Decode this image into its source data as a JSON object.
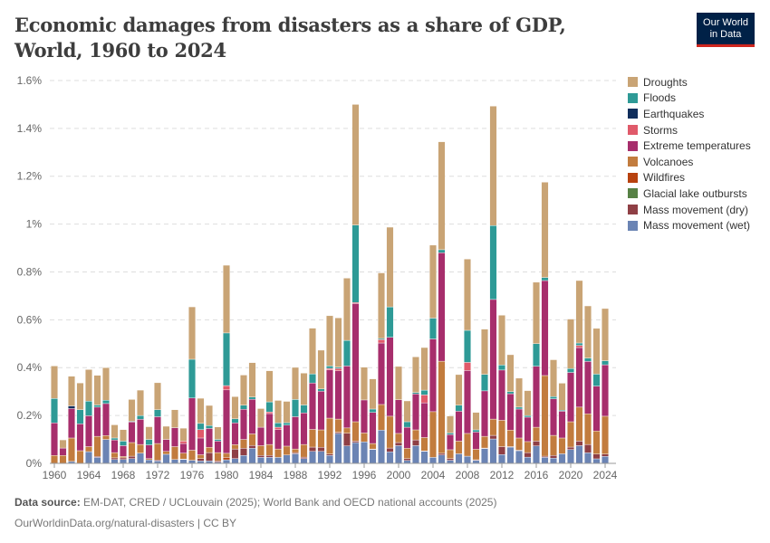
{
  "title": "Economic damages from disasters as a share of GDP, World, 1960 to 2024",
  "logo": {
    "line1": "Our World",
    "line2": "in Data"
  },
  "footer": {
    "source_label": "Data source:",
    "source": "EM-DAT, CRED / UCLouvain (2025); World Bank and OECD national accounts (2025)",
    "url": "OurWorldinData.org/natural-disasters | CC BY"
  },
  "chart_data": {
    "type": "bar",
    "stacked": true,
    "title": "Economic damages from disasters as a share of GDP, World, 1960 to 2024",
    "xlabel": "",
    "ylabel": "",
    "ylim": [
      0,
      1.6
    ],
    "grid": true,
    "legend_position": "right",
    "y_ticks": [
      "0%",
      "0.2%",
      "0.4%",
      "0.6%",
      "0.8%",
      "1%",
      "1.2%",
      "1.4%",
      "1.6%"
    ],
    "x_ticks": [
      "1960",
      "1964",
      "1968",
      "1972",
      "1976",
      "1980",
      "1984",
      "1988",
      "1992",
      "1996",
      "2000",
      "2004",
      "2008",
      "2012",
      "2016",
      "2020",
      "2024"
    ],
    "years": [
      1960,
      1961,
      1962,
      1963,
      1964,
      1965,
      1966,
      1967,
      1968,
      1969,
      1970,
      1971,
      1972,
      1973,
      1974,
      1975,
      1976,
      1977,
      1978,
      1979,
      1980,
      1981,
      1982,
      1983,
      1984,
      1985,
      1986,
      1987,
      1988,
      1989,
      1990,
      1991,
      1992,
      1993,
      1994,
      1995,
      1996,
      1997,
      1998,
      1999,
      2000,
      2001,
      2002,
      2003,
      2004,
      2005,
      2006,
      2007,
      2008,
      2009,
      2010,
      2011,
      2012,
      2013,
      2014,
      2015,
      2016,
      2017,
      2018,
      2019,
      2020,
      2021,
      2022,
      2023,
      2024
    ],
    "unit": "% of GDP",
    "series": [
      {
        "name": "Mass movement (wet)",
        "color": "#6b84b4",
        "values": [
          0,
          0,
          0.008,
          0,
          0.049,
          0.025,
          0.1,
          0.016,
          0.016,
          0.02,
          0.043,
          0.015,
          0.01,
          0.038,
          0.016,
          0.016,
          0.013,
          0.01,
          0.01,
          0.005,
          0.015,
          0.02,
          0.033,
          0.063,
          0.025,
          0.025,
          0.025,
          0.035,
          0.04,
          0.02,
          0.05,
          0.05,
          0.033,
          0.125,
          0.073,
          0.087,
          0.09,
          0.058,
          0.139,
          0.048,
          0.074,
          0.012,
          0.074,
          0.05,
          0.025,
          0.035,
          0.013,
          0.04,
          0.03,
          0.012,
          0.062,
          0.102,
          0.037,
          0.068,
          0.053,
          0.026,
          0.073,
          0.025,
          0.022,
          0.04,
          0.058,
          0.074,
          0.044,
          0.019,
          0.029
        ]
      },
      {
        "name": "Mass movement (dry)",
        "color": "#8f3f45",
        "values": [
          0,
          0,
          0,
          0,
          0,
          0.004,
          0,
          0.007,
          0.007,
          0.01,
          0,
          0,
          0.004,
          0,
          0,
          0.002,
          0,
          0.01,
          0.035,
          0.005,
          0,
          0.04,
          0.03,
          0.012,
          0.008,
          0.008,
          0,
          0,
          0.005,
          0.006,
          0.018,
          0.017,
          0.006,
          0.005,
          0.053,
          0.006,
          0,
          0.002,
          0,
          0.016,
          0.013,
          0.008,
          0.024,
          0.002,
          0,
          0.007,
          0.007,
          0,
          0,
          0.003,
          0.002,
          0.015,
          0.033,
          0.002,
          0.002,
          0.019,
          0.02,
          0.005,
          0.011,
          0,
          0.01,
          0.019,
          0.035,
          0.02,
          0.01
        ]
      },
      {
        "name": "Glacial lake outbursts",
        "color": "#578145",
        "values": [
          0,
          0,
          0,
          0,
          0,
          0,
          0,
          0,
          0,
          0,
          0,
          0,
          0,
          0,
          0,
          0,
          0,
          0,
          0,
          0,
          0,
          0,
          0,
          0,
          0,
          0,
          0,
          0,
          0,
          0,
          0,
          0,
          0,
          0,
          0,
          0,
          0,
          0,
          0,
          0,
          0,
          0,
          0,
          0,
          0,
          0,
          0,
          0,
          0,
          0,
          0,
          0,
          0,
          0,
          0,
          0,
          0,
          0,
          0,
          0,
          0,
          0,
          0,
          0,
          0
        ]
      },
      {
        "name": "Wildfires",
        "color": "#b8420f",
        "values": [
          0,
          0,
          0,
          0,
          0,
          0,
          0,
          0,
          0,
          0,
          0,
          0,
          0,
          0,
          0,
          0,
          0,
          0,
          0,
          0,
          0.01,
          0,
          0,
          0,
          0,
          0,
          0,
          0,
          0,
          0,
          0,
          0,
          0,
          0,
          0,
          0,
          0,
          0,
          0,
          0,
          0,
          0,
          0,
          0,
          0,
          0,
          0,
          0,
          0,
          0,
          0,
          0,
          0,
          0,
          0,
          0,
          0,
          0,
          0,
          0,
          0,
          0,
          0,
          0,
          0
        ]
      },
      {
        "name": "Volcanoes",
        "color": "#c27c3e",
        "values": [
          0.033,
          0.033,
          0.098,
          0.053,
          0.021,
          0.084,
          0.016,
          0.022,
          0.006,
          0.057,
          0.036,
          0.005,
          0.069,
          0.012,
          0.054,
          0.025,
          0.042,
          0.016,
          0.022,
          0.035,
          0.017,
          0.018,
          0.037,
          0.048,
          0.041,
          0.046,
          0.035,
          0.037,
          0.015,
          0.053,
          0.074,
          0.073,
          0.15,
          0.055,
          0.022,
          0.081,
          0.037,
          0.023,
          0.107,
          0.133,
          0.038,
          0.043,
          0.042,
          0.056,
          0.191,
          0.385,
          0.037,
          0.053,
          0.095,
          0.044,
          0.049,
          0.068,
          0.11,
          0.069,
          0.051,
          0.046,
          0.058,
          0.337,
          0.084,
          0.066,
          0.106,
          0.142,
          0.128,
          0.096,
          0.158
        ]
      },
      {
        "name": "Extreme temperatures",
        "color": "#a72e6c",
        "values": [
          0.136,
          0.031,
          0.123,
          0.112,
          0.129,
          0.122,
          0.134,
          0.053,
          0.045,
          0.086,
          0.105,
          0.057,
          0.112,
          0.05,
          0.079,
          0.04,
          0.218,
          0.07,
          0.079,
          0.048,
          0.265,
          0.091,
          0.126,
          0.145,
          0.077,
          0.129,
          0.081,
          0.088,
          0.135,
          0.132,
          0.194,
          0.162,
          0.202,
          0.202,
          0.259,
          0.494,
          0.138,
          0.13,
          0.257,
          0.33,
          0.141,
          0.088,
          0.15,
          0.145,
          0.304,
          0.453,
          0.063,
          0.125,
          0.263,
          0.072,
          0.19,
          0.5,
          0.21,
          0.152,
          0.121,
          0.102,
          0.255,
          0.397,
          0.153,
          0.112,
          0.206,
          0.249,
          0.219,
          0.188,
          0.215
        ]
      },
      {
        "name": "Storms",
        "color": "#e05a6a",
        "values": [
          0,
          0,
          0,
          0,
          0,
          0,
          0,
          0,
          0,
          0,
          0,
          0,
          0,
          0,
          0,
          0.01,
          0,
          0.035,
          0,
          0,
          0.018,
          0,
          0,
          0,
          0,
          0.007,
          0.01,
          0,
          0,
          0,
          0,
          0,
          0.006,
          0.01,
          0,
          0.004,
          0,
          0,
          0.014,
          0,
          0,
          0,
          0,
          0.033,
          0,
          0,
          0,
          0,
          0.034,
          0,
          0,
          0,
          0,
          0,
          0,
          0,
          0,
          0,
          0,
          0,
          0,
          0.009,
          0,
          0,
          0
        ]
      },
      {
        "name": "Earthquakes",
        "color": "#102e5c",
        "values": [
          0,
          0,
          0.011,
          0,
          0,
          0,
          0,
          0,
          0,
          0,
          0,
          0,
          0,
          0,
          0,
          0,
          0,
          0,
          0,
          0,
          0,
          0,
          0,
          0,
          0,
          0,
          0,
          0,
          0,
          0,
          0,
          0,
          0,
          0,
          0,
          0,
          0,
          0,
          0,
          0,
          0,
          0,
          0,
          0,
          0,
          0,
          0,
          0,
          0,
          0,
          0,
          0,
          0,
          0,
          0,
          0,
          0,
          0,
          0,
          0,
          0,
          0,
          0,
          0,
          0
        ]
      },
      {
        "name": "Floods",
        "color": "#2e9a96",
        "values": [
          0.102,
          0,
          0,
          0.059,
          0.061,
          0.009,
          0.014,
          0.008,
          0.019,
          0.003,
          0.016,
          0.023,
          0.029,
          0,
          0,
          0,
          0.162,
          0.026,
          0.012,
          0.007,
          0.22,
          0.017,
          0.017,
          0.009,
          0,
          0.042,
          0.018,
          0.01,
          0.072,
          0.033,
          0.038,
          0.009,
          0.01,
          0.005,
          0.107,
          0.324,
          0,
          0.014,
          0.005,
          0.127,
          0,
          0.023,
          0.006,
          0.02,
          0.087,
          0.013,
          0.007,
          0.025,
          0.134,
          0.009,
          0.069,
          0.309,
          0.021,
          0.009,
          0.008,
          0.007,
          0.094,
          0.013,
          0.009,
          0.004,
          0.016,
          0.01,
          0.014,
          0.05,
          0.017
        ]
      },
      {
        "name": "Droughts",
        "color": "#c9a475",
        "values": [
          0.136,
          0.034,
          0.124,
          0.112,
          0.132,
          0.124,
          0.136,
          0.055,
          0.048,
          0.091,
          0.106,
          0.053,
          0.113,
          0.055,
          0.075,
          0.054,
          0.219,
          0.105,
          0.084,
          0.052,
          0.283,
          0.093,
          0.126,
          0.144,
          0.078,
          0.13,
          0.094,
          0.089,
          0.134,
          0.133,
          0.191,
          0.162,
          0.21,
          0.206,
          0.26,
          0.504,
          0.137,
          0.126,
          0.274,
          0.333,
          0.139,
          0.087,
          0.149,
          0.178,
          0.305,
          0.451,
          0.071,
          0.128,
          0.298,
          0.073,
          0.189,
          0.499,
          0.208,
          0.154,
          0.121,
          0.104,
          0.257,
          0.398,
          0.154,
          0.113,
          0.207,
          0.261,
          0.218,
          0.191,
          0.218
        ]
      }
    ]
  }
}
